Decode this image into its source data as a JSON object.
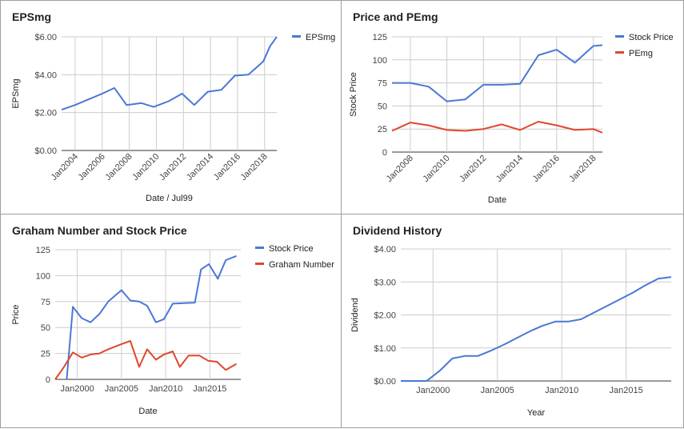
{
  "chart_data": [
    {
      "type": "line",
      "title": "EPSmg",
      "xlabel": "Date / Jul99",
      "ylabel": "EPSmg",
      "ylim": [
        0,
        6
      ],
      "xlim": [
        2003,
        2018.9
      ],
      "yticks": [
        "$0.00",
        "$2.00",
        "$4.00",
        "$6.00"
      ],
      "xticks": [
        {
          "v": 2004,
          "label": "Jan2004"
        },
        {
          "v": 2006,
          "label": "Jan2006"
        },
        {
          "v": 2008,
          "label": "Jan2008"
        },
        {
          "v": 2010,
          "label": "Jan2010"
        },
        {
          "v": 2012,
          "label": "Jan2012"
        },
        {
          "v": 2014,
          "label": "Jan2014"
        },
        {
          "v": 2016,
          "label": "Jan2016"
        },
        {
          "v": 2018,
          "label": "Jan2018"
        }
      ],
      "xlabel_rotate": true,
      "legend": "right",
      "series": [
        {
          "name": "EPSmg",
          "color": "#4a78d6",
          "x": [
            2003.0,
            2004.0,
            2005.0,
            2006.0,
            2006.9,
            2007.8,
            2008.9,
            2009.8,
            2010.9,
            2011.9,
            2012.8,
            2013.8,
            2014.8,
            2015.8,
            2016.8,
            2017.9,
            2018.4,
            2018.9
          ],
          "y": [
            2.15,
            2.4,
            2.7,
            3.0,
            3.3,
            2.4,
            2.5,
            2.3,
            2.6,
            3.0,
            2.4,
            3.1,
            3.2,
            3.95,
            4.0,
            4.7,
            5.5,
            6.0
          ]
        }
      ]
    },
    {
      "type": "line",
      "title": "Price and PEmg",
      "xlabel": "Date",
      "ylabel": "Stock Price",
      "ylim": [
        0,
        125
      ],
      "xlim": [
        2007,
        2018.5
      ],
      "yticks": [
        "0",
        "25",
        "50",
        "75",
        "100",
        "125"
      ],
      "xticks": [
        {
          "v": 2008,
          "label": "Jan2008"
        },
        {
          "v": 2010,
          "label": "Jan2010"
        },
        {
          "v": 2012,
          "label": "Jan2012"
        },
        {
          "v": 2014,
          "label": "Jan2014"
        },
        {
          "v": 2016,
          "label": "Jan2016"
        },
        {
          "v": 2018,
          "label": "Jan2018"
        }
      ],
      "xlabel_rotate": true,
      "legend": "right",
      "series": [
        {
          "name": "Stock Price",
          "color": "#4a78d6",
          "x": [
            2007.0,
            2008.0,
            2009.0,
            2010.0,
            2011.0,
            2012.0,
            2013.0,
            2014.0,
            2015.0,
            2016.0,
            2017.0,
            2018.0,
            2018.5
          ],
          "y": [
            75,
            75,
            71,
            55,
            57,
            73,
            73,
            74,
            105,
            111,
            97,
            115,
            116
          ]
        },
        {
          "name": "PEmg",
          "color": "#e0472b",
          "x": [
            2007.0,
            2008.0,
            2009.0,
            2010.0,
            2011.0,
            2012.0,
            2013.0,
            2014.0,
            2015.0,
            2016.0,
            2017.0,
            2018.0,
            2018.5
          ],
          "y": [
            23,
            32,
            29,
            24,
            23,
            25,
            30,
            24,
            33,
            29,
            24,
            25,
            21
          ]
        }
      ]
    },
    {
      "type": "line",
      "title": "Graham Number and Stock Price",
      "xlabel": "Date",
      "ylabel": "Price",
      "ylim": [
        0,
        125
      ],
      "xlim": [
        1997.5,
        2018.5
      ],
      "yticks": [
        "0",
        "25",
        "50",
        "75",
        "100",
        "125"
      ],
      "xticks": [
        {
          "v": 2000,
          "label": "Jan2000"
        },
        {
          "v": 2005,
          "label": "Jan2005"
        },
        {
          "v": 2010,
          "label": "Jan2010"
        },
        {
          "v": 2015,
          "label": "Jan2015"
        }
      ],
      "xlabel_rotate": false,
      "legend": "right",
      "series": [
        {
          "name": "Stock Price",
          "color": "#4a78d6",
          "x": [
            1998.8,
            1999.5,
            2000.5,
            2001.5,
            2002.5,
            2003.5,
            2005.0,
            2006.0,
            2007.0,
            2007.9,
            2008.9,
            2009.8,
            2010.8,
            2013.3,
            2014.0,
            2014.9,
            2015.9,
            2016.8,
            2018.0
          ],
          "y": [
            0,
            70,
            59,
            55,
            63,
            75,
            86,
            76,
            75,
            71,
            55,
            58,
            73,
            74,
            106,
            111,
            97,
            115,
            119
          ]
        },
        {
          "name": "Graham Number",
          "color": "#e0472b",
          "x": [
            1997.5,
            1998.5,
            1999.5,
            2000.5,
            2001.5,
            2002.5,
            2003.5,
            2005.0,
            2006.0,
            2007.0,
            2007.9,
            2008.9,
            2009.8,
            2010.8,
            2011.6,
            2012.6,
            2013.8,
            2014.8,
            2015.8,
            2016.8,
            2018.0
          ],
          "y": [
            0,
            12,
            26,
            21,
            24,
            25,
            29,
            34,
            37,
            12,
            29,
            19,
            24,
            27,
            12,
            23,
            23,
            18,
            17,
            9,
            15
          ]
        }
      ]
    },
    {
      "type": "line",
      "title": "Dividend History",
      "xlabel": "Year",
      "ylabel": "Dividend",
      "ylim": [
        0,
        4
      ],
      "xlim": [
        1997.5,
        2018.5
      ],
      "yticks": [
        "$0.00",
        "$1.00",
        "$2.00",
        "$3.00",
        "$4.00"
      ],
      "xticks": [
        {
          "v": 2000,
          "label": "Jan2000"
        },
        {
          "v": 2005,
          "label": "Jan2005"
        },
        {
          "v": 2010,
          "label": "Jan2010"
        },
        {
          "v": 2015,
          "label": "Jan2015"
        }
      ],
      "xlabel_rotate": false,
      "legend": "none",
      "series": [
        {
          "name": "",
          "color": "#4a78d6",
          "x": [
            1997.5,
            1999.5,
            2000.5,
            2001.5,
            2002.5,
            2003.5,
            2004.5,
            2005.5,
            2006.5,
            2007.5,
            2008.5,
            2009.5,
            2010.5,
            2011.5,
            2012.5,
            2013.5,
            2014.5,
            2015.5,
            2016.5,
            2017.5,
            2018.5
          ],
          "y": [
            0,
            0,
            0.3,
            0.68,
            0.76,
            0.76,
            0.92,
            1.1,
            1.3,
            1.5,
            1.67,
            1.8,
            1.8,
            1.87,
            2.07,
            2.27,
            2.47,
            2.67,
            2.9,
            3.1,
            3.15
          ]
        }
      ]
    }
  ]
}
